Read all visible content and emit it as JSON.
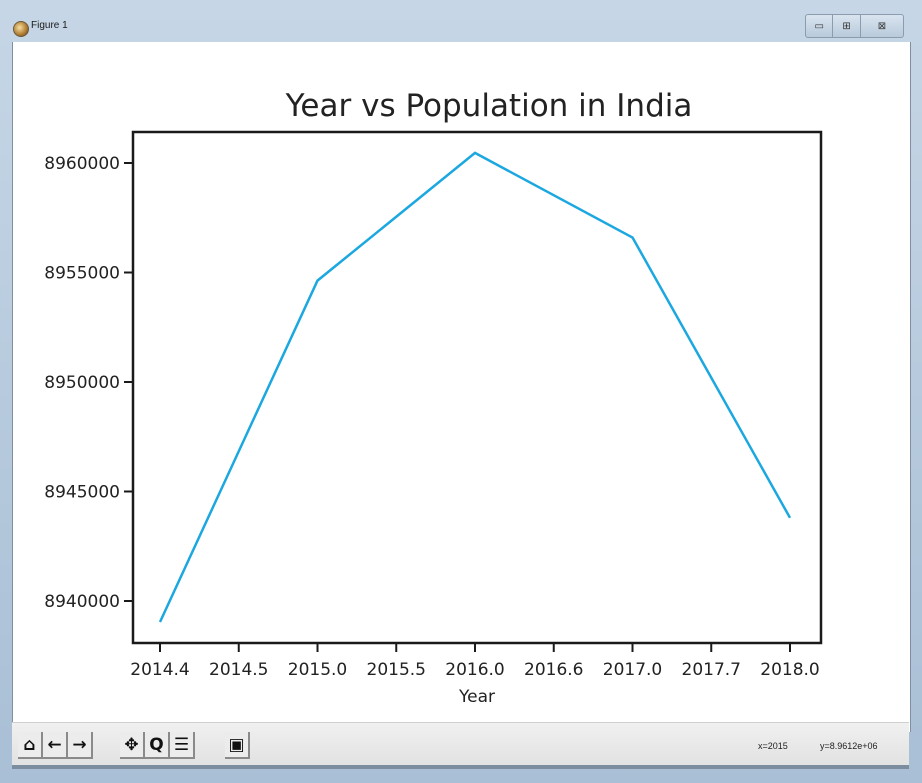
{
  "window": {
    "title": "Figure 1",
    "controls": {
      "minimize": "▭",
      "maximize": "⊞",
      "close": "⊠"
    }
  },
  "toolbar": {
    "buttons": [
      {
        "name": "home",
        "icon": "home-icon",
        "glyph": "⌂"
      },
      {
        "name": "back",
        "icon": "arrow-left-icon",
        "glyph": "←"
      },
      {
        "name": "forward",
        "icon": "arrow-right-icon",
        "glyph": "→"
      },
      {
        "name": "pan",
        "icon": "move-icon",
        "glyph": "✥"
      },
      {
        "name": "zoom",
        "icon": "zoom-icon",
        "glyph": "Q"
      },
      {
        "name": "configure-subplots",
        "icon": "sliders-icon",
        "glyph": "☰"
      },
      {
        "name": "save",
        "icon": "save-icon",
        "glyph": "▣"
      }
    ],
    "x_coord": "x=2015",
    "y_coord": "y=8.9612e+06"
  },
  "chart_data": {
    "type": "line",
    "title": "Year vs Population in India",
    "xlabel": "Year",
    "ylabel": "",
    "x_tick_labels": [
      "2014.4",
      "2014.5",
      "2015.0",
      "2015.5",
      "2016.0",
      "2016.6",
      "2017.0",
      "2017.7",
      "2018.0"
    ],
    "y_tick_labels": [
      "8960000",
      "8955000",
      "8950000",
      "8945000",
      "8940000"
    ],
    "y_ticks": [
      8960000,
      8955000,
      8950000,
      8945000,
      8940000
    ],
    "categories": [
      "2014",
      "2015",
      "2016",
      "2017",
      "2018"
    ],
    "x_tick_index_of_points": [
      0,
      2,
      4,
      6,
      8
    ],
    "series": [
      {
        "name": "Population",
        "color": "#1ba7e0",
        "values": [
          8939040,
          8954630,
          8960460,
          8956600,
          8943800
        ]
      }
    ],
    "ylim": [
      8938200,
      8961400
    ],
    "grid": false,
    "legend": null
  }
}
